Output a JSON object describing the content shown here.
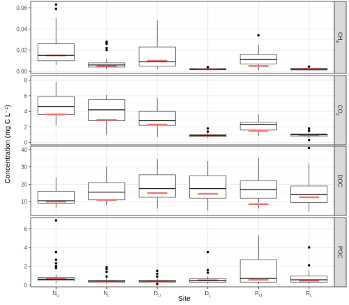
{
  "chart_data": {
    "type": "boxplot",
    "xlabel": "Site",
    "ylabel": "Concentration (mg C L⁻¹)",
    "categories": [
      {
        "main": "N",
        "sub": "U"
      },
      {
        "main": "N",
        "sub": "L"
      },
      {
        "main": "D",
        "sub": "U"
      },
      {
        "main": "D",
        "sub": "L"
      },
      {
        "main": "R",
        "sub": "U"
      },
      {
        "main": "R",
        "sub": "L"
      }
    ],
    "colors": {
      "panel_bg": "#ffffff",
      "grid_major": "#ebebeb",
      "grid_minor": "#f5f5f5",
      "border": "#333333",
      "box_line": "#555555",
      "outlier": "#000000",
      "mean_marker": "#f8766d",
      "strip_bg": "#d9d9d9"
    },
    "panels": [
      {
        "strip": {
          "main": "CH",
          "sub": "4"
        },
        "ylim": [
          -0.002,
          0.066
        ],
        "ticks": [
          0,
          0.02,
          0.04,
          0.06
        ],
        "tick_labels": [
          "0.00",
          "0.02",
          "0.04",
          "0.06"
        ],
        "boxes": [
          {
            "min": 0.006,
            "q1": 0.01,
            "median": 0.015,
            "q3": 0.026,
            "max": 0.05,
            "mean": 0.015,
            "outliers": [
              0.059,
              0.063
            ]
          },
          {
            "min": 0.002,
            "q1": 0.004,
            "median": 0.006,
            "q3": 0.008,
            "max": 0.012,
            "mean": 0.005,
            "outliers": [
              0.02,
              0.022,
              0.026,
              0.027,
              0.028
            ]
          },
          {
            "min": 0.002,
            "q1": 0.005,
            "median": 0.009,
            "q3": 0.023,
            "max": 0.048,
            "mean": 0.01,
            "outliers": []
          },
          {
            "min": 0.001,
            "q1": 0.0015,
            "median": 0.002,
            "q3": 0.0025,
            "max": 0.003,
            "mean": 0.002,
            "outliers": [
              0.004
            ]
          },
          {
            "min": 0.001,
            "q1": 0.007,
            "median": 0.011,
            "q3": 0.016,
            "max": 0.025,
            "mean": 0.005,
            "outliers": [
              0.034
            ]
          },
          {
            "min": 0.001,
            "q1": 0.0013,
            "median": 0.002,
            "q3": 0.0028,
            "max": 0.003,
            "mean": 0.0025,
            "outliers": [
              0.0045
            ]
          }
        ]
      },
      {
        "strip": {
          "main": "CO",
          "sub": "2"
        },
        "ylim": [
          -0.3,
          8.6
        ],
        "ticks": [
          0,
          2,
          4,
          6,
          8
        ],
        "tick_labels": [
          "0",
          "2",
          "4",
          "6",
          "8"
        ],
        "boxes": [
          {
            "min": 2.2,
            "q1": 3.6,
            "median": 4.6,
            "q3": 5.9,
            "max": 7.8,
            "mean": 3.6,
            "outliers": []
          },
          {
            "min": 1.0,
            "q1": 2.8,
            "median": 4.2,
            "q3": 5.5,
            "max": 6.1,
            "mean": 2.9,
            "outliers": []
          },
          {
            "min": 0.7,
            "q1": 2.2,
            "median": 2.8,
            "q3": 4.0,
            "max": 5.7,
            "mean": 2.3,
            "outliers": []
          },
          {
            "min": 0.6,
            "q1": 0.75,
            "median": 0.9,
            "q3": 1.0,
            "max": 1.2,
            "mean": 0.85,
            "outliers": [
              1.4,
              1.8
            ]
          },
          {
            "min": 0.9,
            "q1": 1.6,
            "median": 2.3,
            "q3": 2.6,
            "max": 3.6,
            "mean": 1.5,
            "outliers": []
          },
          {
            "min": 0.6,
            "q1": 0.8,
            "median": 1.0,
            "q3": 1.1,
            "max": 1.3,
            "mean": 0.95,
            "outliers": [
              0.3,
              1.5,
              1.8
            ]
          }
        ]
      },
      {
        "strip": {
          "main": "DOC",
          "sub": ""
        },
        "ylim": [
          2,
          42
        ],
        "ticks": [
          10,
          20,
          30,
          40
        ],
        "tick_labels": [
          "10",
          "20",
          "30",
          "40"
        ],
        "boxes": [
          {
            "min": 6.5,
            "q1": 9.0,
            "median": 10.5,
            "q3": 16.0,
            "max": 24.0,
            "mean": 10.0,
            "outliers": []
          },
          {
            "min": 8.0,
            "q1": 11.0,
            "median": 15.5,
            "q3": 21.0,
            "max": 30.0,
            "mean": 11.0,
            "outliers": []
          },
          {
            "min": 6.0,
            "q1": 12.5,
            "median": 17.5,
            "q3": 25.5,
            "max": 34.5,
            "mean": 15.0,
            "outliers": []
          },
          {
            "min": 5.0,
            "q1": 12.0,
            "median": 17.5,
            "q3": 25.0,
            "max": 33.5,
            "mean": 14.5,
            "outliers": []
          },
          {
            "min": 6.0,
            "q1": 12.0,
            "median": 17.0,
            "q3": 22.0,
            "max": 35.0,
            "mean": 8.5,
            "outliers": []
          },
          {
            "min": 4.0,
            "q1": 9.5,
            "median": 14.0,
            "q3": 19.0,
            "max": 32.0,
            "mean": 12.5,
            "outliers": [
              41.0
            ]
          }
        ]
      },
      {
        "strip": {
          "main": "POC",
          "sub": ""
        },
        "ylim": [
          -0.2,
          7.2
        ],
        "ticks": [
          0,
          2,
          4,
          6
        ],
        "tick_labels": [
          "0",
          "2",
          "4",
          "6"
        ],
        "boxes": [
          {
            "min": 0.2,
            "q1": 0.45,
            "median": 0.6,
            "q3": 0.8,
            "max": 1.1,
            "mean": 0.7,
            "outliers": [
              1.8,
              2.0,
              2.3,
              2.7,
              3.5,
              6.9
            ]
          },
          {
            "min": 0.15,
            "q1": 0.3,
            "median": 0.4,
            "q3": 0.5,
            "max": 0.7,
            "mean": 0.35,
            "outliers": [
              0.9,
              1.4,
              1.7,
              1.9
            ]
          },
          {
            "min": 0.15,
            "q1": 0.3,
            "median": 0.4,
            "q3": 0.5,
            "max": 0.7,
            "mean": 0.35,
            "outliers": [
              0.1,
              0.9,
              1.2,
              1.5
            ]
          },
          {
            "min": 0.15,
            "q1": 0.3,
            "median": 0.45,
            "q3": 0.65,
            "max": 0.9,
            "mean": 0.5,
            "outliers": [
              1.3,
              1.6,
              3.5
            ]
          },
          {
            "min": 0.1,
            "q1": 0.3,
            "median": 0.7,
            "q3": 2.7,
            "max": 5.3,
            "mean": 0.55,
            "outliers": []
          },
          {
            "min": 0.1,
            "q1": 0.3,
            "median": 0.55,
            "q3": 0.95,
            "max": 1.6,
            "mean": 0.45,
            "outliers": [
              2.1,
              4.0
            ]
          }
        ]
      }
    ]
  }
}
